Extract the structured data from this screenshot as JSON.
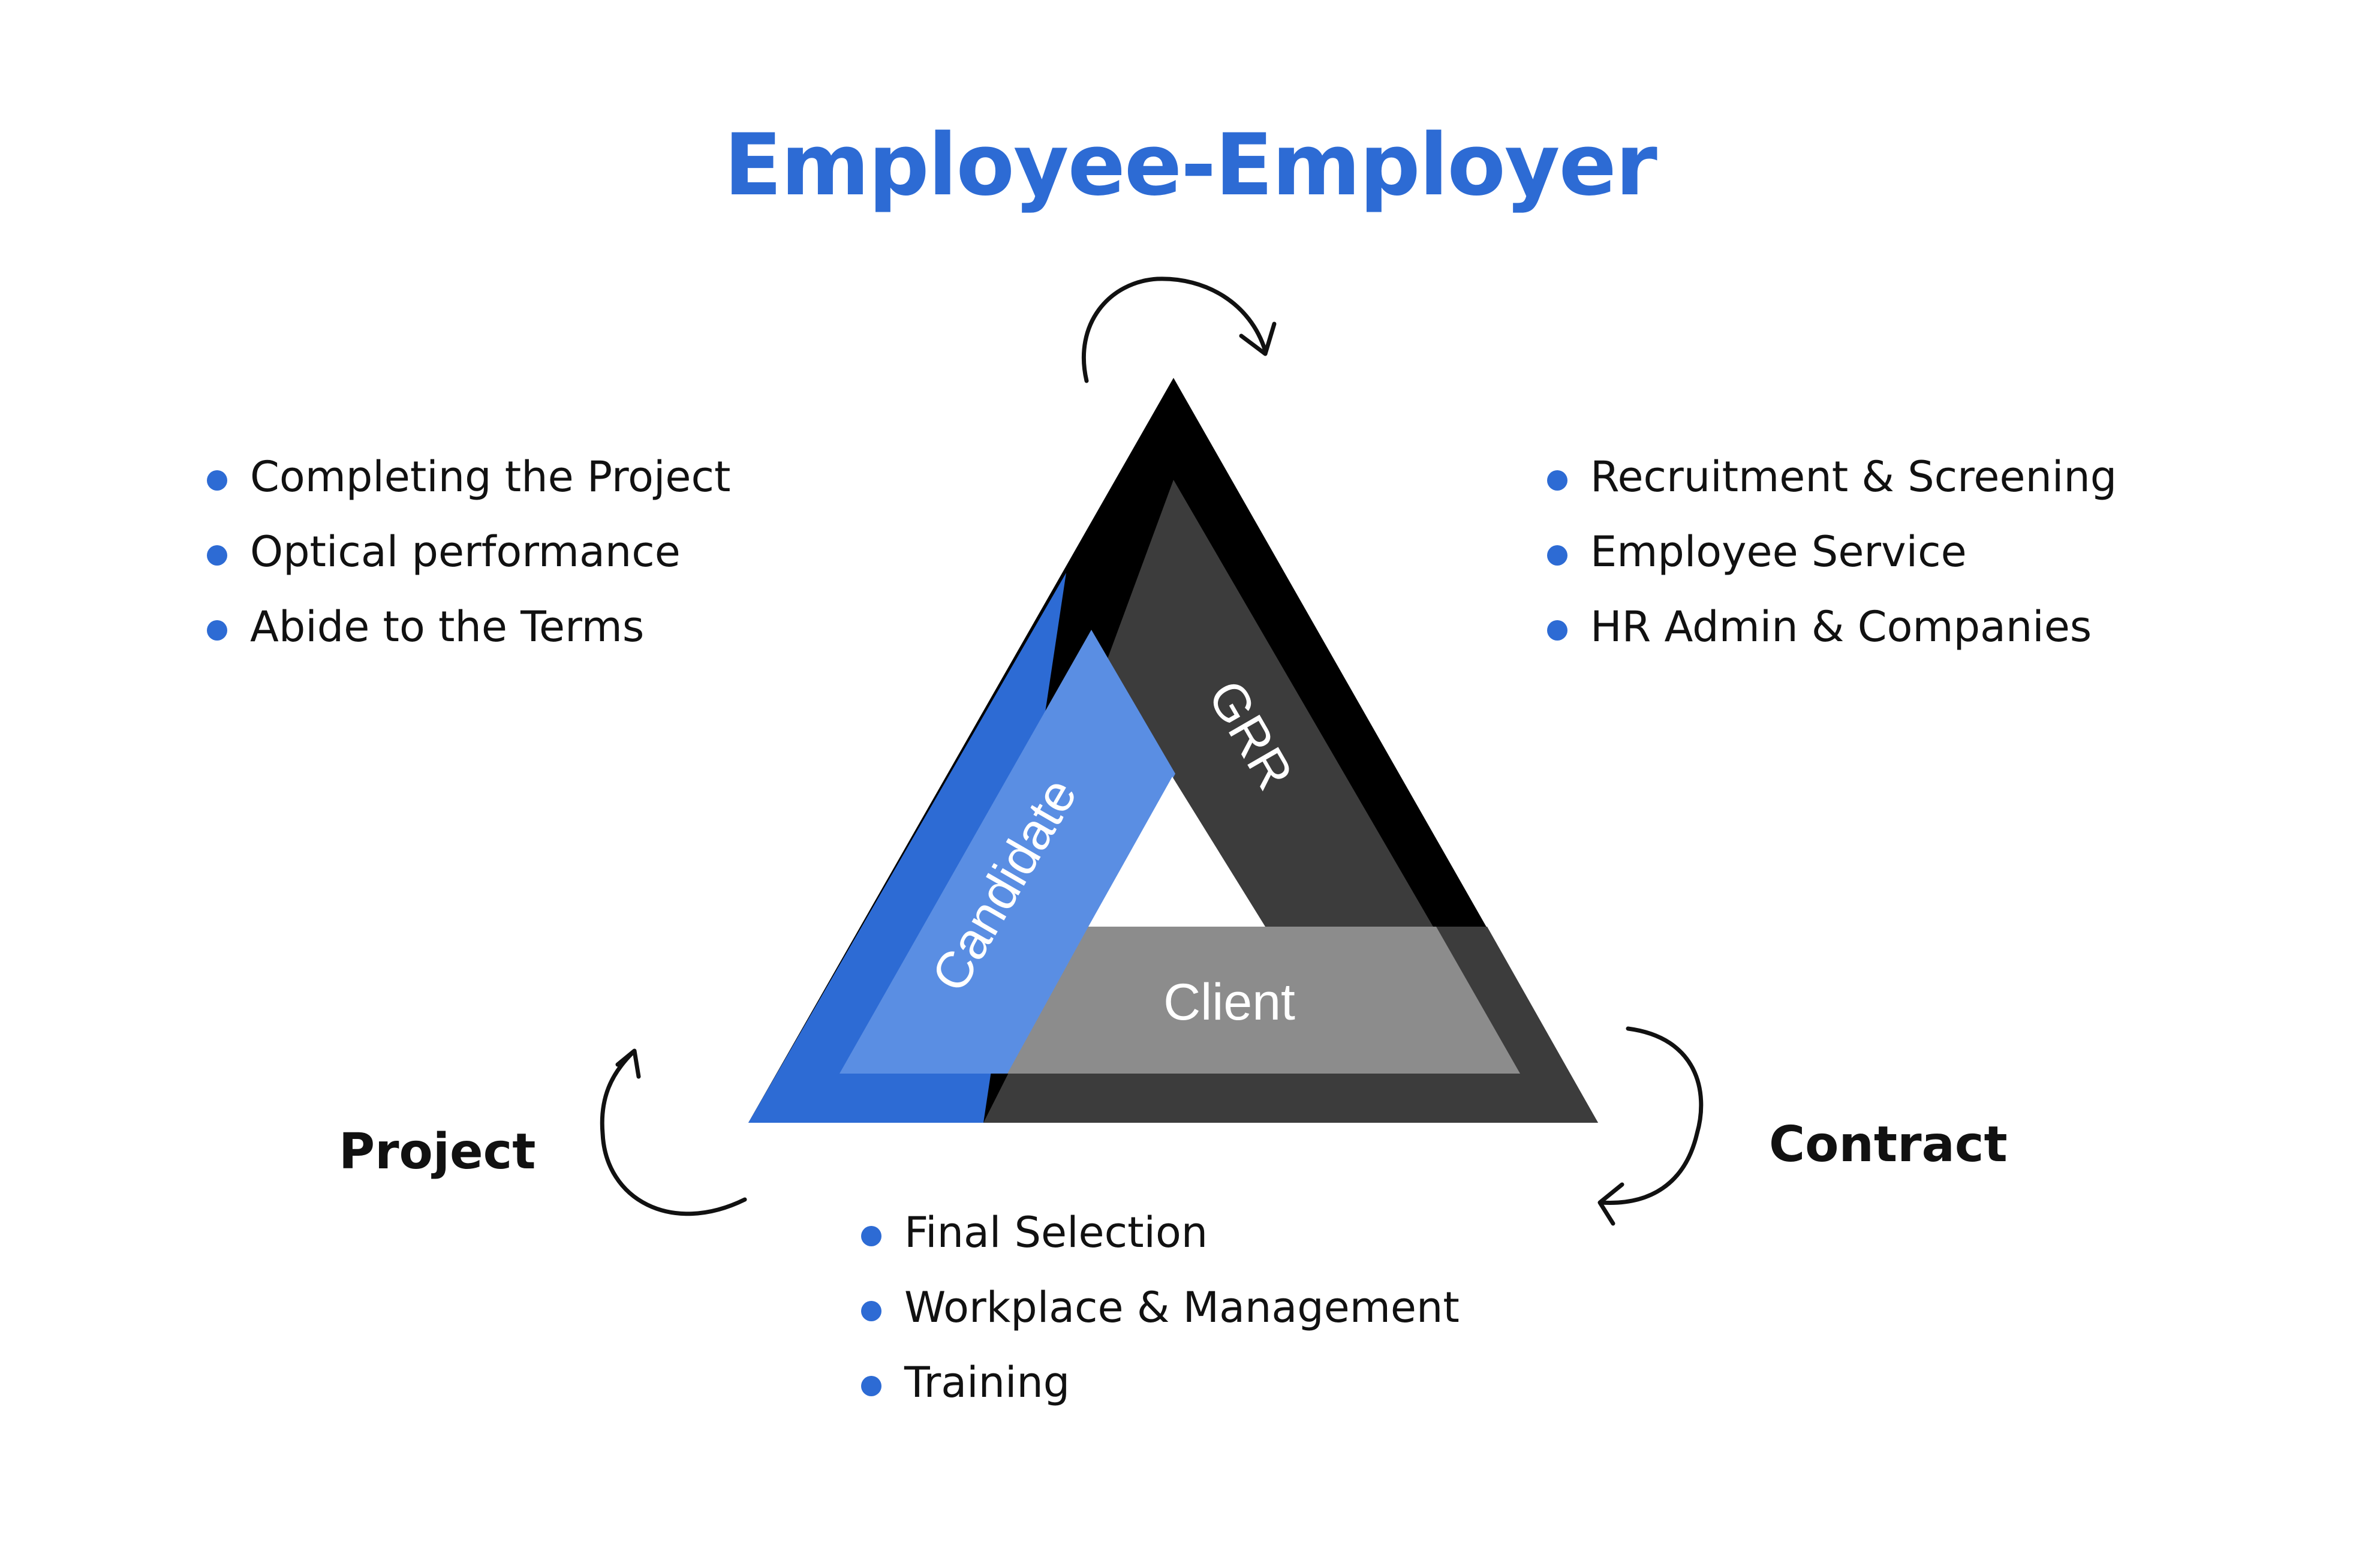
{
  "title": "Employee-Employer",
  "colors": {
    "accent": "#2d6bd4",
    "accent_light": "#5a8ee3",
    "black": "#000000",
    "dark_gray": "#3c3c3c",
    "mid_gray": "#8c8c8c"
  },
  "triangle": {
    "segments": [
      "GRR",
      "Candidate",
      "Client"
    ]
  },
  "lists": {
    "top_left": [
      "Completing the Project",
      "Optical performance",
      "Abide to the Terms"
    ],
    "top_right": [
      "Recruitment & Screening",
      "Employee Service",
      "HR Admin & Companies"
    ],
    "bottom": [
      "Final Selection",
      "Workplace & Management",
      "Training"
    ]
  },
  "corners": {
    "project": "Project",
    "contract": "Contract"
  },
  "icons": [
    "curved-arrow-icon"
  ]
}
